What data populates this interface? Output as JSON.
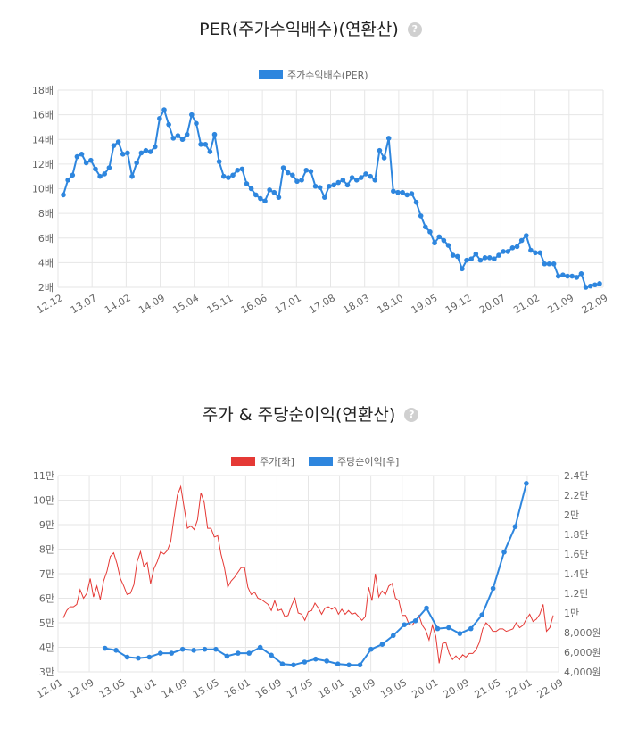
{
  "chart1": {
    "title": "PER(주가수익배수)(연환산)",
    "help_glyph": "?",
    "chart_data": {
      "type": "line",
      "title": "PER(주가수익배수)(연환산)",
      "x_ticks": [
        "12.12",
        "13.07",
        "14.02",
        "14.09",
        "15.04",
        "15.11",
        "16.06",
        "17.01",
        "17.08",
        "18.03",
        "18.10",
        "19.05",
        "19.12",
        "20.07",
        "21.02",
        "21.09",
        "22.09"
      ],
      "y_ticks": [
        "2배",
        "4배",
        "6배",
        "8배",
        "10배",
        "12배",
        "14배",
        "16배",
        "18배"
      ],
      "ylim": [
        2,
        18
      ],
      "legend_position": "top-center",
      "grid": true,
      "series": [
        {
          "name": "주가수익배수(PER)",
          "color": "#2e86de",
          "values": [
            9.5,
            10.7,
            11.1,
            12.6,
            12.8,
            12.1,
            12.3,
            11.6,
            11.0,
            11.2,
            11.7,
            13.5,
            13.8,
            12.8,
            12.9,
            11.0,
            12.1,
            12.9,
            13.1,
            13.0,
            13.4,
            15.7,
            16.4,
            15.2,
            14.1,
            14.3,
            14.0,
            14.4,
            16.0,
            15.3,
            13.6,
            13.6,
            13.0,
            14.4,
            12.2,
            11.0,
            10.9,
            11.1,
            11.5,
            11.6,
            10.4,
            10.0,
            9.5,
            9.2,
            9.0,
            9.9,
            9.7,
            9.3,
            11.7,
            11.3,
            11.1,
            10.6,
            10.7,
            11.5,
            11.4,
            10.2,
            10.1,
            9.3,
            10.2,
            10.3,
            10.5,
            10.7,
            10.3,
            10.9,
            10.7,
            10.9,
            11.2,
            11.0,
            10.7,
            13.1,
            12.5,
            14.1,
            9.8,
            9.7,
            9.7,
            9.5,
            9.6,
            8.9,
            7.8,
            6.9,
            6.5,
            5.6,
            6.1,
            5.8,
            5.4,
            4.6,
            4.5,
            3.5,
            4.2,
            4.3,
            4.7,
            4.2,
            4.4,
            4.4,
            4.3,
            4.6,
            4.9,
            4.9,
            5.2,
            5.3,
            5.8,
            6.2,
            5.0,
            4.8,
            4.8,
            3.9,
            3.9,
            3.9,
            2.9,
            3.0,
            2.9,
            2.9,
            2.8,
            3.1,
            2.0,
            2.1,
            2.2,
            2.3
          ]
        }
      ]
    }
  },
  "chart2": {
    "title": "주가 & 주당순이익(연환산)",
    "help_glyph": "?",
    "chart_data": {
      "type": "line",
      "title": "주가 & 주당순이익(연환산)",
      "x_ticks": [
        "12.01",
        "12.09",
        "13.05",
        "14.01",
        "14.09",
        "15.05",
        "16.01",
        "16.09",
        "17.05",
        "18.01",
        "18.09",
        "19.05",
        "20.01",
        "20.09",
        "21.05",
        "22.01",
        "22.09"
      ],
      "y_left_ticks": [
        "3만",
        "4만",
        "5만",
        "6만",
        "7만",
        "8만",
        "9만",
        "10만",
        "11만"
      ],
      "y_right_ticks": [
        "4,000원",
        "6,000원",
        "8,000원",
        "1만",
        "1.2만",
        "1.4만",
        "1.6만",
        "1.8만",
        "2만",
        "2.2만",
        "2.4만"
      ],
      "ylim_left": [
        30000,
        110000
      ],
      "ylim_right": [
        4000,
        24000
      ],
      "legend_position": "top-center",
      "grid": true,
      "series": [
        {
          "name": "주가[좌]",
          "axis": "left",
          "color": "#e53935",
          "values": [
            52000,
            55000,
            56500,
            56500,
            57500,
            63500,
            60000,
            62000,
            68000,
            60500,
            65000,
            59500,
            67000,
            71000,
            77000,
            78500,
            74000,
            68000,
            65000,
            61500,
            62000,
            65500,
            75000,
            79000,
            73000,
            74500,
            66000,
            72000,
            75000,
            79000,
            78000,
            79500,
            83000,
            93000,
            102000,
            105500,
            97000,
            88500,
            89500,
            88000,
            92000,
            103000,
            99000,
            88500,
            88500,
            85000,
            85500,
            78000,
            72500,
            64500,
            67000,
            68500,
            70500,
            72500,
            72500,
            64500,
            61500,
            62500,
            60000,
            59500,
            58500,
            57500,
            55000,
            59000,
            55000,
            55500,
            52500,
            53000,
            57000,
            60000,
            54000,
            53500,
            51000,
            54500,
            55000,
            58000,
            56000,
            53500,
            56000,
            56500,
            55500,
            56500,
            53500,
            55500,
            53500,
            55000,
            53500,
            54000,
            52500,
            51000,
            52500,
            64500,
            59000,
            70000,
            60500,
            63000,
            61500,
            65000,
            66000,
            60000,
            59000,
            53000,
            53000,
            49500,
            49000,
            51000,
            53000,
            49000,
            47000,
            43000,
            49000,
            44500,
            33500,
            41500,
            42000,
            37500,
            35000,
            36500,
            35000,
            37000,
            36000,
            37500,
            37500,
            39000,
            42000,
            47500,
            50000,
            48500,
            46500,
            46500,
            47500,
            47500,
            46500,
            47000,
            47500,
            50000,
            48000,
            49000,
            51500,
            53500,
            50500,
            51500,
            53500,
            57500,
            46500,
            48000,
            53000
          ]
        },
        {
          "name": "주당순이익[우]",
          "axis": "right",
          "color": "#2e86de",
          "points": [
            {
              "x": 0.106,
              "y": 6400
            },
            {
              "x": 0.131,
              "y": 6200
            },
            {
              "x": 0.156,
              "y": 5500
            },
            {
              "x": 0.181,
              "y": 5400
            },
            {
              "x": 0.206,
              "y": 5500
            },
            {
              "x": 0.231,
              "y": 5900
            },
            {
              "x": 0.256,
              "y": 5900
            },
            {
              "x": 0.281,
              "y": 6300
            },
            {
              "x": 0.306,
              "y": 6200
            },
            {
              "x": 0.331,
              "y": 6300
            },
            {
              "x": 0.356,
              "y": 6300
            },
            {
              "x": 0.381,
              "y": 5600
            },
            {
              "x": 0.406,
              "y": 5900
            },
            {
              "x": 0.431,
              "y": 5900
            },
            {
              "x": 0.456,
              "y": 6500
            },
            {
              "x": 0.481,
              "y": 5700
            },
            {
              "x": 0.506,
              "y": 4800
            },
            {
              "x": 0.531,
              "y": 4700
            },
            {
              "x": 0.556,
              "y": 5000
            },
            {
              "x": 0.581,
              "y": 5300
            },
            {
              "x": 0.606,
              "y": 5100
            },
            {
              "x": 0.631,
              "y": 4800
            },
            {
              "x": 0.656,
              "y": 4700
            },
            {
              "x": 0.681,
              "y": 4700
            },
            {
              "x": 0.706,
              "y": 6300
            },
            {
              "x": 0.731,
              "y": 6800
            },
            {
              "x": 0.756,
              "y": 7700
            },
            {
              "x": 0.781,
              "y": 8800
            },
            {
              "x": 0.806,
              "y": 9200
            },
            {
              "x": 0.831,
              "y": 10500
            },
            {
              "x": 0.856,
              "y": 8400
            },
            {
              "x": 0.881,
              "y": 8500
            },
            {
              "x": 0.906,
              "y": 7900
            },
            {
              "x": 0.931,
              "y": 8400
            },
            {
              "x": 0.956,
              "y": 9800
            },
            {
              "x": 0.981,
              "y": 12500
            },
            {
              "x": 1.006,
              "y": 16200
            },
            {
              "x": 1.031,
              "y": 18800
            },
            {
              "x": 1.056,
              "y": 23200
            }
          ]
        }
      ]
    }
  }
}
